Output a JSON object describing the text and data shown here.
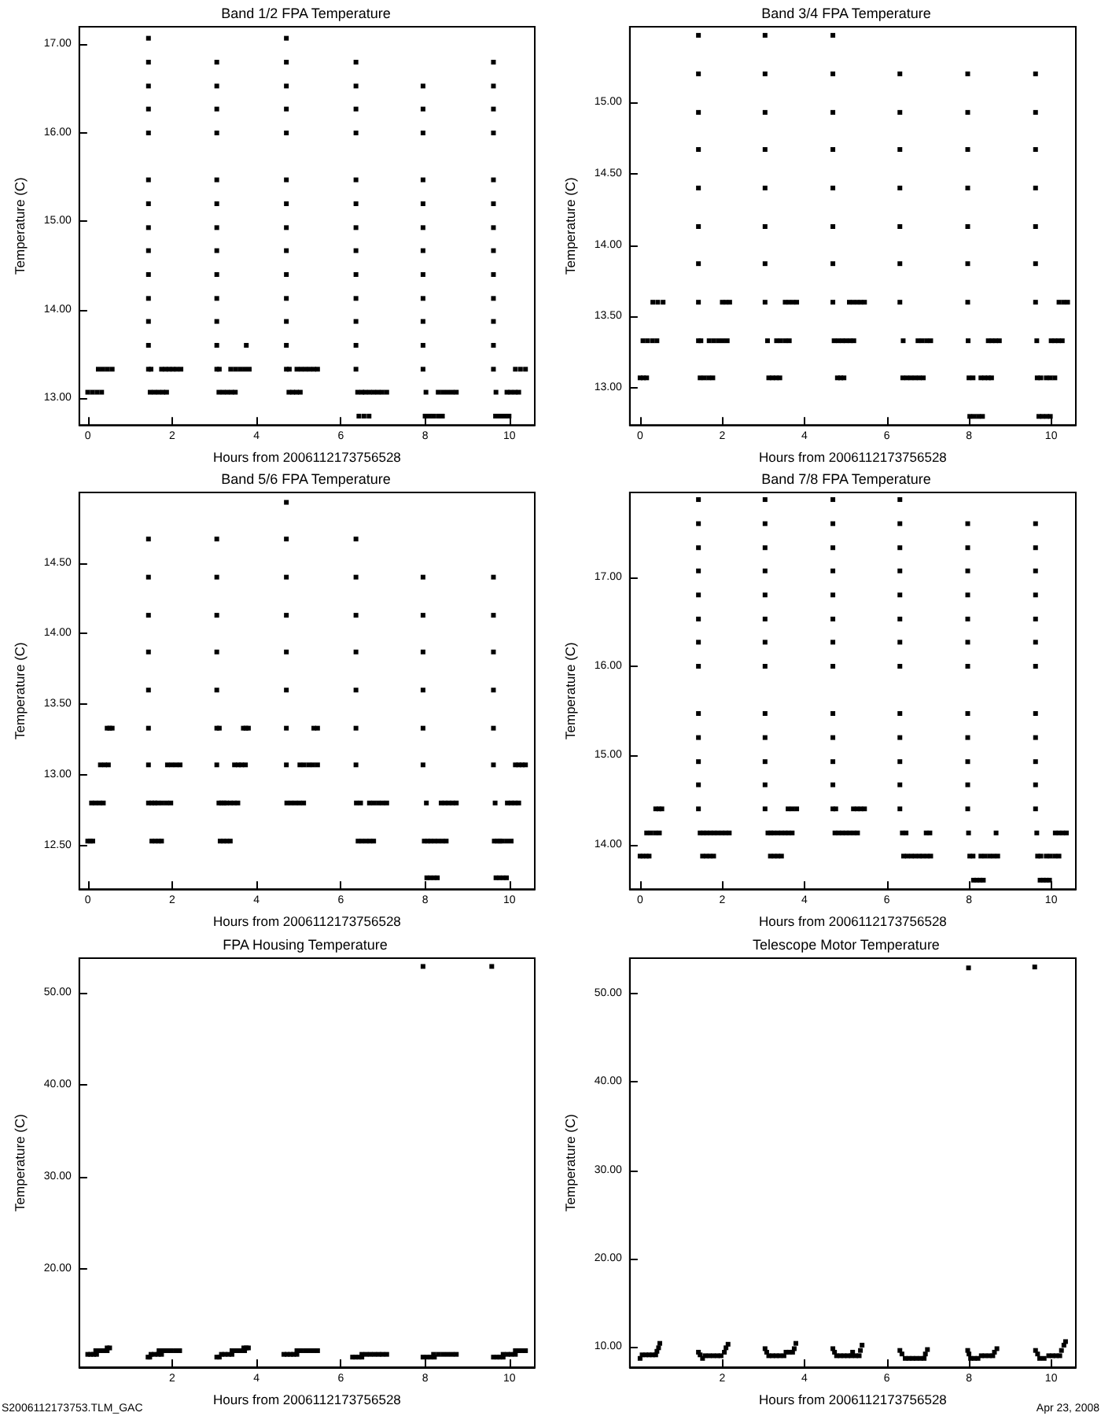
{
  "chart_data": [
    {
      "type": "scatter",
      "title": "Band 1/2 FPA Temperature",
      "xlabel": "Hours from 2006112173756528",
      "ylabel": "Temperature (C)",
      "color": "#000000",
      "marker": "square",
      "xlim": [
        -0.2,
        10.6
      ],
      "xticks": [
        0,
        2,
        4,
        6,
        8,
        10
      ],
      "ylim": [
        12.7,
        17.2
      ],
      "yticks": [
        {
          "value": 13,
          "label": "13.00"
        },
        {
          "value": 14,
          "label": "14.00"
        },
        {
          "value": 15,
          "label": "15.00"
        },
        {
          "value": 16,
          "label": "16.00"
        },
        {
          "value": 17,
          "label": "17.00"
        }
      ],
      "x": [
        0.0,
        0.11,
        0.22,
        0.33,
        0.25,
        0.36,
        0.47,
        0.58,
        1.44,
        1.44,
        1.44,
        1.44,
        1.44,
        1.44,
        1.44,
        1.44,
        1.44,
        1.44,
        1.44,
        1.44,
        1.44,
        1.44,
        1.5,
        1.48,
        1.58,
        1.68,
        1.78,
        1.87,
        1.75,
        1.84,
        1.93,
        2.02,
        2.11,
        2.21,
        3.06,
        3.06,
        3.06,
        3.06,
        3.06,
        3.06,
        3.06,
        3.06,
        3.06,
        3.06,
        3.06,
        3.06,
        3.06,
        3.12,
        3.11,
        3.21,
        3.31,
        3.41,
        3.5,
        3.39,
        3.5,
        3.61,
        3.72,
        3.83,
        3.76,
        4.71,
        4.71,
        4.71,
        4.71,
        4.71,
        4.71,
        4.71,
        4.71,
        4.71,
        4.71,
        4.71,
        4.71,
        4.71,
        4.71,
        4.78,
        4.77,
        4.86,
        4.95,
        5.04,
        4.96,
        5.06,
        5.16,
        5.26,
        5.36,
        5.45,
        6.36,
        6.36,
        6.36,
        6.36,
        6.36,
        6.36,
        6.36,
        6.36,
        6.36,
        6.36,
        6.36,
        6.36,
        6.36,
        6.4,
        6.5,
        6.58,
        6.68,
        6.78,
        6.88,
        6.98,
        7.09,
        6.43,
        6.55,
        6.67,
        7.95,
        7.95,
        7.95,
        7.95,
        7.95,
        7.95,
        7.95,
        7.95,
        7.95,
        7.95,
        7.95,
        7.95,
        8.02,
        8.31,
        8.42,
        8.53,
        8.64,
        8.74,
        8.0,
        8.1,
        8.2,
        8.31,
        8.41,
        9.62,
        9.62,
        9.62,
        9.62,
        9.62,
        9.62,
        9.62,
        9.62,
        9.62,
        9.62,
        9.62,
        9.62,
        9.62,
        9.68,
        9.94,
        10.03,
        10.13,
        10.22,
        9.67,
        9.78,
        9.89,
        9.99,
        10.14,
        10.26,
        10.38
      ],
      "values": [
        13.07,
        13.07,
        13.07,
        13.07,
        13.33,
        13.33,
        13.33,
        13.33,
        17.07,
        16.8,
        16.53,
        16.27,
        16.0,
        15.47,
        15.2,
        14.93,
        14.67,
        14.4,
        14.13,
        13.87,
        13.6,
        13.33,
        13.33,
        13.07,
        13.07,
        13.07,
        13.07,
        13.07,
        13.33,
        13.33,
        13.33,
        13.33,
        13.33,
        13.33,
        16.8,
        16.53,
        16.27,
        16.0,
        15.47,
        15.2,
        14.93,
        14.67,
        14.4,
        14.13,
        13.87,
        13.6,
        13.33,
        13.33,
        13.07,
        13.07,
        13.07,
        13.07,
        13.07,
        13.33,
        13.33,
        13.33,
        13.33,
        13.33,
        13.6,
        17.07,
        16.8,
        16.53,
        16.27,
        16.0,
        15.47,
        15.2,
        14.93,
        14.67,
        14.4,
        14.13,
        13.87,
        13.6,
        13.33,
        13.33,
        13.07,
        13.07,
        13.07,
        13.07,
        13.33,
        13.33,
        13.33,
        13.33,
        13.33,
        13.33,
        16.8,
        16.53,
        16.27,
        16.0,
        15.47,
        15.2,
        14.93,
        14.67,
        14.4,
        14.13,
        13.87,
        13.6,
        13.33,
        13.07,
        13.07,
        13.07,
        13.07,
        13.07,
        13.07,
        13.07,
        13.07,
        12.8,
        12.8,
        12.8,
        16.53,
        16.27,
        16.0,
        15.47,
        15.2,
        14.93,
        14.67,
        14.4,
        14.13,
        13.87,
        13.6,
        13.33,
        13.07,
        13.07,
        13.07,
        13.07,
        13.07,
        13.07,
        12.8,
        12.8,
        12.8,
        12.8,
        12.8,
        16.8,
        16.53,
        16.27,
        16.0,
        15.47,
        15.2,
        14.93,
        14.67,
        14.4,
        14.13,
        13.87,
        13.6,
        13.33,
        13.07,
        13.07,
        13.07,
        13.07,
        13.07,
        12.8,
        12.8,
        12.8,
        12.8,
        13.33,
        13.33,
        13.33
      ]
    },
    {
      "type": "scatter",
      "title": "Band 3/4 FPA Temperature",
      "xlabel": "Hours from 2006112173756528",
      "ylabel": "Temperature (C)",
      "color": "#000000",
      "marker": "square",
      "xlim": [
        -0.25,
        10.6
      ],
      "xticks": [
        0,
        2,
        4,
        6,
        8,
        10
      ],
      "ylim": [
        12.74,
        15.53
      ],
      "yticks": [
        {
          "value": 13,
          "label": "13.00"
        },
        {
          "value": 13.5,
          "label": "13.50"
        },
        {
          "value": 14,
          "label": "14.00"
        },
        {
          "value": 14.5,
          "label": "14.50"
        },
        {
          "value": 15,
          "label": "15.00"
        }
      ],
      "x": [
        0.0,
        0.08,
        0.16,
        0.07,
        0.18,
        0.3,
        0.41,
        0.31,
        0.43,
        0.56,
        1.42,
        1.42,
        1.42,
        1.42,
        1.42,
        1.42,
        1.42,
        1.42,
        1.42,
        1.48,
        1.46,
        1.56,
        1.67,
        1.77,
        1.68,
        1.79,
        1.9,
        2.01,
        2.12,
        2.0,
        2.09,
        2.18,
        3.04,
        3.04,
        3.04,
        3.04,
        3.04,
        3.04,
        3.04,
        3.04,
        3.1,
        3.13,
        3.22,
        3.31,
        3.4,
        3.32,
        3.42,
        3.53,
        3.63,
        3.53,
        3.62,
        3.72,
        3.81,
        4.69,
        4.69,
        4.69,
        4.69,
        4.69,
        4.69,
        4.69,
        4.69,
        4.8,
        4.88,
        4.96,
        4.72,
        4.82,
        4.92,
        5.01,
        5.11,
        5.2,
        5.09,
        5.18,
        5.28,
        5.37,
        5.46,
        6.32,
        6.32,
        6.32,
        6.32,
        6.32,
        6.32,
        6.32,
        6.4,
        6.39,
        6.49,
        6.59,
        6.69,
        6.79,
        6.89,
        6.76,
        6.86,
        6.97,
        7.07,
        7.97,
        7.97,
        7.97,
        7.97,
        7.97,
        7.97,
        7.97,
        7.98,
        8.02,
        8.12,
        8.23,
        8.33,
        8.0,
        8.1,
        8.29,
        8.38,
        8.47,
        8.55,
        8.47,
        8.56,
        8.65,
        8.74,
        9.62,
        9.62,
        9.62,
        9.62,
        9.62,
        9.62,
        9.62,
        9.65,
        9.7,
        9.79,
        9.89,
        9.98,
        9.66,
        9.75,
        9.88,
        9.98,
        10.09,
        10.0,
        10.09,
        10.18,
        10.27,
        10.19,
        10.3,
        10.4
      ],
      "values": [
        13.07,
        13.07,
        13.07,
        13.33,
        13.33,
        13.33,
        13.33,
        13.6,
        13.6,
        13.6,
        15.47,
        15.2,
        14.93,
        14.67,
        14.4,
        14.13,
        13.87,
        13.6,
        13.33,
        13.33,
        13.07,
        13.07,
        13.07,
        13.07,
        13.33,
        13.33,
        13.33,
        13.33,
        13.33,
        13.6,
        13.6,
        13.6,
        15.47,
        15.2,
        14.93,
        14.67,
        14.4,
        14.13,
        13.87,
        13.6,
        13.33,
        13.07,
        13.07,
        13.07,
        13.07,
        13.33,
        13.33,
        13.33,
        13.33,
        13.6,
        13.6,
        13.6,
        13.6,
        15.47,
        15.2,
        14.93,
        14.67,
        14.4,
        14.13,
        13.87,
        13.6,
        13.07,
        13.07,
        13.07,
        13.33,
        13.33,
        13.33,
        13.33,
        13.33,
        13.33,
        13.6,
        13.6,
        13.6,
        13.6,
        13.6,
        15.2,
        14.93,
        14.67,
        14.4,
        14.13,
        13.87,
        13.6,
        13.33,
        13.07,
        13.07,
        13.07,
        13.07,
        13.07,
        13.07,
        13.33,
        13.33,
        13.33,
        13.33,
        15.2,
        14.93,
        14.67,
        14.4,
        14.13,
        13.87,
        13.6,
        13.33,
        12.8,
        12.8,
        12.8,
        12.8,
        13.07,
        13.07,
        13.07,
        13.07,
        13.07,
        13.07,
        13.33,
        13.33,
        13.33,
        13.33,
        15.2,
        14.93,
        14.67,
        14.4,
        14.13,
        13.87,
        13.6,
        13.33,
        12.8,
        12.8,
        12.8,
        12.8,
        13.07,
        13.07,
        13.07,
        13.07,
        13.07,
        13.33,
        13.33,
        13.33,
        13.33,
        13.6,
        13.6,
        13.6
      ]
    },
    {
      "type": "scatter",
      "title": "Band 5/6 FPA Temperature",
      "xlabel": "Hours from 2006112173756528",
      "ylabel": "Temperature (C)",
      "color": "#000000",
      "marker": "square",
      "xlim": [
        -0.2,
        10.6
      ],
      "xticks": [
        0,
        2,
        4,
        6,
        8,
        10
      ],
      "ylim": [
        12.19,
        15.0
      ],
      "yticks": [
        {
          "value": 12.5,
          "label": "12.50"
        },
        {
          "value": 13,
          "label": "13.00"
        },
        {
          "value": 13.5,
          "label": "13.50"
        },
        {
          "value": 14,
          "label": "14.00"
        },
        {
          "value": 14.5,
          "label": "14.50"
        }
      ],
      "x": [
        0.0,
        0.06,
        0.12,
        0.09,
        0.18,
        0.28,
        0.37,
        0.3,
        0.4,
        0.49,
        0.46,
        0.52,
        0.58,
        1.44,
        1.44,
        1.44,
        1.44,
        1.44,
        1.44,
        1.44,
        1.44,
        1.52,
        1.59,
        1.66,
        1.76,
        1.87,
        1.97,
        1.52,
        1.6,
        1.68,
        1.75,
        1.89,
        1.99,
        2.09,
        2.19,
        3.06,
        3.06,
        3.06,
        3.06,
        3.06,
        3.06,
        3.06,
        3.12,
        3.11,
        3.17,
        3.23,
        3.29,
        3.38,
        3.47,
        3.56,
        3.14,
        3.22,
        3.3,
        3.38,
        3.48,
        3.57,
        3.65,
        3.74,
        3.69,
        3.75,
        3.81,
        4.71,
        4.71,
        4.71,
        4.71,
        4.71,
        4.71,
        4.71,
        4.71,
        4.72,
        4.82,
        4.92,
        5.02,
        5.12,
        5.03,
        5.13,
        5.24,
        5.34,
        5.45,
        5.36,
        5.45,
        6.36,
        6.36,
        6.36,
        6.36,
        6.36,
        6.36,
        6.36,
        6.41,
        6.5,
        6.6,
        6.69,
        6.78,
        6.37,
        6.47,
        6.68,
        6.78,
        6.89,
        6.99,
        7.09,
        7.95,
        7.95,
        7.95,
        7.95,
        7.95,
        7.95,
        8.04,
        8.12,
        8.21,
        8.29,
        7.98,
        8.06,
        8.13,
        8.22,
        8.31,
        8.41,
        8.5,
        8.03,
        8.38,
        8.47,
        8.56,
        8.65,
        8.74,
        9.62,
        9.62,
        9.62,
        9.62,
        9.62,
        9.62,
        9.68,
        9.76,
        9.85,
        9.93,
        9.64,
        9.71,
        9.77,
        9.82,
        9.93,
        10.04,
        9.66,
        9.95,
        10.04,
        10.13,
        10.22,
        10.14,
        10.22,
        10.3,
        10.38
      ],
      "values": [
        12.53,
        12.53,
        12.53,
        12.8,
        12.8,
        12.8,
        12.8,
        13.07,
        13.07,
        13.07,
        13.33,
        13.33,
        13.33,
        14.67,
        14.4,
        14.13,
        13.87,
        13.6,
        13.33,
        13.07,
        12.8,
        12.8,
        12.8,
        12.8,
        12.8,
        12.8,
        12.8,
        12.53,
        12.53,
        12.53,
        12.53,
        13.07,
        13.07,
        13.07,
        13.07,
        14.67,
        14.4,
        14.13,
        13.87,
        13.6,
        13.33,
        13.07,
        13.33,
        12.8,
        12.8,
        12.8,
        12.8,
        12.8,
        12.8,
        12.8,
        12.53,
        12.53,
        12.53,
        12.53,
        13.07,
        13.07,
        13.07,
        13.07,
        13.33,
        13.33,
        13.33,
        14.93,
        14.67,
        14.4,
        14.13,
        13.87,
        13.6,
        13.33,
        13.07,
        12.8,
        12.8,
        12.8,
        12.8,
        12.8,
        13.07,
        13.07,
        13.07,
        13.07,
        13.07,
        13.33,
        13.33,
        14.67,
        14.4,
        14.13,
        13.87,
        13.6,
        13.33,
        13.07,
        12.53,
        12.53,
        12.53,
        12.53,
        12.53,
        12.8,
        12.8,
        12.8,
        12.8,
        12.8,
        12.8,
        12.8,
        14.4,
        14.13,
        13.87,
        13.6,
        13.33,
        13.07,
        12.27,
        12.27,
        12.27,
        12.27,
        12.53,
        12.53,
        12.53,
        12.53,
        12.53,
        12.53,
        12.53,
        12.8,
        12.8,
        12.8,
        12.8,
        12.8,
        12.8,
        14.4,
        14.13,
        13.87,
        13.6,
        13.33,
        13.07,
        12.27,
        12.27,
        12.27,
        12.27,
        12.53,
        12.53,
        12.53,
        12.53,
        12.53,
        12.53,
        12.8,
        12.8,
        12.8,
        12.8,
        12.8,
        13.07,
        13.07,
        13.07,
        13.07
      ]
    },
    {
      "type": "scatter",
      "title": "Band 7/8 FPA Temperature",
      "xlabel": "Hours from 2006112173756528",
      "ylabel": "Temperature (C)",
      "color": "#000000",
      "marker": "square",
      "xlim": [
        -0.25,
        10.6
      ],
      "xticks": [
        0,
        2,
        4,
        6,
        8,
        10
      ],
      "ylim": [
        13.5,
        17.95
      ],
      "yticks": [
        {
          "value": 14,
          "label": "14.00"
        },
        {
          "value": 15,
          "label": "15.00"
        },
        {
          "value": 16,
          "label": "16.00"
        },
        {
          "value": 17,
          "label": "17.00"
        }
      ],
      "x": [
        0.0,
        0.07,
        0.15,
        0.22,
        0.16,
        0.26,
        0.37,
        0.47,
        0.38,
        0.46,
        0.53,
        1.42,
        1.42,
        1.42,
        1.42,
        1.42,
        1.42,
        1.42,
        1.42,
        1.42,
        1.42,
        1.42,
        1.42,
        1.42,
        1.46,
        1.54,
        1.62,
        1.71,
        1.8,
        1.89,
        1.99,
        2.08,
        2.17,
        1.52,
        1.61,
        1.7,
        1.79,
        3.04,
        3.04,
        3.04,
        3.04,
        3.04,
        3.04,
        3.04,
        3.04,
        3.04,
        3.04,
        3.04,
        3.04,
        3.04,
        3.11,
        3.18,
        3.25,
        3.35,
        3.44,
        3.53,
        3.61,
        3.7,
        3.17,
        3.26,
        3.35,
        3.44,
        3.6,
        3.7,
        3.81,
        4.69,
        4.69,
        4.69,
        4.69,
        4.69,
        4.69,
        4.69,
        4.69,
        4.69,
        4.69,
        4.69,
        4.69,
        4.69,
        4.74,
        4.83,
        4.92,
        5.01,
        5.1,
        5.2,
        5.29,
        4.76,
        5.19,
        5.28,
        5.37,
        5.46,
        6.32,
        6.32,
        6.32,
        6.32,
        6.32,
        6.32,
        6.32,
        6.32,
        6.32,
        6.32,
        6.32,
        6.32,
        6.32,
        6.41,
        6.5,
        6.6,
        6.69,
        6.79,
        6.88,
        6.98,
        7.07,
        6.38,
        6.47,
        6.96,
        7.05,
        7.97,
        7.97,
        7.97,
        7.97,
        7.97,
        7.97,
        7.97,
        7.97,
        7.97,
        7.97,
        7.97,
        7.97,
        8.11,
        8.19,
        8.27,
        8.35,
        8.02,
        8.1,
        8.29,
        8.39,
        8.5,
        8.6,
        8.7,
        7.99,
        8.66,
        9.62,
        9.62,
        9.62,
        9.62,
        9.62,
        9.62,
        9.62,
        9.62,
        9.62,
        9.62,
        9.62,
        9.62,
        9.73,
        9.81,
        9.88,
        9.96,
        9.67,
        9.75,
        9.88,
        9.98,
        10.09,
        10.19,
        9.65,
        10.1,
        10.19,
        10.28,
        10.37
      ],
      "values": [
        13.87,
        13.87,
        13.87,
        13.87,
        14.13,
        14.13,
        14.13,
        14.13,
        14.4,
        14.4,
        14.4,
        17.87,
        17.6,
        17.33,
        17.07,
        16.8,
        16.53,
        16.27,
        16.0,
        15.47,
        15.2,
        14.93,
        14.67,
        14.4,
        14.13,
        14.13,
        14.13,
        14.13,
        14.13,
        14.13,
        14.13,
        14.13,
        14.13,
        13.87,
        13.87,
        13.87,
        13.87,
        17.87,
        17.6,
        17.33,
        17.07,
        16.8,
        16.53,
        16.27,
        16.0,
        15.47,
        15.2,
        14.93,
        14.67,
        14.4,
        14.13,
        14.13,
        14.13,
        14.13,
        14.13,
        14.13,
        14.13,
        14.13,
        13.87,
        13.87,
        13.87,
        13.87,
        14.4,
        14.4,
        14.4,
        17.87,
        17.6,
        17.33,
        17.07,
        16.8,
        16.53,
        16.27,
        16.0,
        15.47,
        15.2,
        14.93,
        14.67,
        14.4,
        14.13,
        14.13,
        14.13,
        14.13,
        14.13,
        14.13,
        14.13,
        14.4,
        14.4,
        14.4,
        14.4,
        14.4,
        17.87,
        17.6,
        17.33,
        17.07,
        16.8,
        16.53,
        16.27,
        16.0,
        15.47,
        15.2,
        14.93,
        14.67,
        14.4,
        13.87,
        13.87,
        13.87,
        13.87,
        13.87,
        13.87,
        13.87,
        13.87,
        14.13,
        14.13,
        14.13,
        14.13,
        17.6,
        17.33,
        17.07,
        16.8,
        16.53,
        16.27,
        16.0,
        15.47,
        15.2,
        14.93,
        14.67,
        14.4,
        13.6,
        13.6,
        13.6,
        13.6,
        13.87,
        13.87,
        13.87,
        13.87,
        13.87,
        13.87,
        13.87,
        14.13,
        14.13,
        17.6,
        17.33,
        17.07,
        16.8,
        16.53,
        16.27,
        16.0,
        15.47,
        15.2,
        14.93,
        14.67,
        14.4,
        13.6,
        13.6,
        13.6,
        13.6,
        13.87,
        13.87,
        13.87,
        13.87,
        13.87,
        13.87,
        14.13,
        14.13,
        14.13,
        14.13,
        14.13
      ]
    },
    {
      "type": "scatter",
      "title": "FPA Housing Temperature",
      "xlabel": "Hours from 2006112173756528",
      "ylabel": "Temperature (C)",
      "color": "#000000",
      "marker": "square",
      "xlim": [
        -0.2,
        10.6
      ],
      "xticks": [
        2,
        4,
        6,
        8,
        10
      ],
      "ylim": [
        9.3,
        53.8
      ],
      "yticks": [
        {
          "value": 20,
          "label": "20.00"
        },
        {
          "value": 30,
          "label": "30.00"
        },
        {
          "value": 40,
          "label": "40.00"
        },
        {
          "value": 50,
          "label": "50.00"
        }
      ],
      "annotations": [
        "S2006112173753.TLM_GAC"
      ],
      "x": [
        0.0,
        0.07,
        0.14,
        0.21,
        0.19,
        0.28,
        0.37,
        0.46,
        0.46,
        0.52,
        1.43,
        1.47,
        1.5,
        1.58,
        1.67,
        1.75,
        1.69,
        1.79,
        1.89,
        1.98,
        2.08,
        2.18,
        3.06,
        3.12,
        3.17,
        3.25,
        3.34,
        3.42,
        3.42,
        3.52,
        3.62,
        3.72,
        3.7,
        3.76,
        3.81,
        4.65,
        4.73,
        4.81,
        4.88,
        4.96,
        4.96,
        5.06,
        5.16,
        5.26,
        5.36,
        5.45,
        6.28,
        6.35,
        6.43,
        6.5,
        6.5,
        6.6,
        6.7,
        6.8,
        6.9,
        6.99,
        7.09,
        7.95,
        7.95,
        8.04,
        8.13,
        8.22,
        8.2,
        8.31,
        8.42,
        8.53,
        8.64,
        8.74,
        9.58,
        9.62,
        9.7,
        9.77,
        9.85,
        9.85,
        9.95,
        10.04,
        10.14,
        10.14,
        10.22,
        10.3,
        10.38
      ],
      "values": [
        10.7,
        10.7,
        10.7,
        10.7,
        11.1,
        11.1,
        11.1,
        11.1,
        11.4,
        11.4,
        10.4,
        10.4,
        10.7,
        10.7,
        10.7,
        10.7,
        11.1,
        11.1,
        11.1,
        11.1,
        11.1,
        11.1,
        10.4,
        10.4,
        10.7,
        10.7,
        10.7,
        10.7,
        11.1,
        11.1,
        11.1,
        11.1,
        11.4,
        11.4,
        11.4,
        10.7,
        10.7,
        10.7,
        10.7,
        10.7,
        11.1,
        11.1,
        11.1,
        11.1,
        11.1,
        11.1,
        10.4,
        10.4,
        10.4,
        10.4,
        10.7,
        10.7,
        10.7,
        10.7,
        10.7,
        10.7,
        10.7,
        52.9,
        10.4,
        10.4,
        10.4,
        10.4,
        10.7,
        10.7,
        10.7,
        10.7,
        10.7,
        10.7,
        52.9,
        10.4,
        10.4,
        10.4,
        10.4,
        10.7,
        10.7,
        10.7,
        10.7,
        11.1,
        11.1,
        11.1,
        11.1
      ]
    },
    {
      "type": "scatter",
      "title": "Telescope Motor Temperature",
      "xlabel": "Hours from 2006112173756528",
      "ylabel": "Temperature (C)",
      "color": "#000000",
      "marker": "square",
      "xlim": [
        -0.25,
        10.6
      ],
      "xticks": [
        2,
        4,
        6,
        8,
        10
      ],
      "ylim": [
        7.7,
        54.0
      ],
      "yticks": [
        {
          "value": 10,
          "label": "10.00"
        },
        {
          "value": 20,
          "label": "20.00"
        },
        {
          "value": 30,
          "label": "30.00"
        },
        {
          "value": 40,
          "label": "40.00"
        },
        {
          "value": 50,
          "label": "50.00"
        }
      ],
      "annotations": [
        "Apr 23, 2008"
      ],
      "x": [
        0.0,
        0.05,
        0.14,
        0.22,
        0.3,
        0.38,
        0.41,
        0.45,
        0.48,
        1.42,
        1.46,
        1.52,
        1.58,
        1.68,
        1.78,
        1.88,
        1.97,
        2.05,
        2.09,
        2.14,
        3.04,
        3.08,
        3.13,
        3.22,
        3.31,
        3.4,
        3.5,
        3.55,
        3.63,
        3.71,
        3.75,
        3.79,
        4.69,
        4.73,
        4.78,
        4.87,
        4.96,
        5.05,
        5.14,
        5.17,
        5.24,
        5.33,
        5.36,
        5.4,
        6.32,
        6.37,
        6.45,
        6.54,
        6.63,
        6.72,
        6.82,
        6.91,
        6.94,
        6.99,
        7.99,
        7.97,
        8.0,
        8.04,
        8.13,
        8.22,
        8.3,
        8.39,
        8.49,
        8.58,
        8.62,
        8.68,
        9.6,
        9.62,
        9.67,
        9.72,
        9.83,
        9.94,
        10.03,
        10.12,
        10.21,
        10.25,
        10.31,
        10.35
      ],
      "values": [
        8.7,
        9.1,
        9.1,
        9.1,
        9.1,
        9.1,
        9.5,
        9.9,
        10.4,
        9.4,
        9.1,
        8.7,
        9.0,
        9.0,
        9.0,
        9.0,
        9.0,
        9.4,
        9.9,
        10.3,
        9.8,
        9.4,
        9.0,
        9.0,
        9.0,
        9.0,
        9.0,
        9.4,
        9.4,
        9.4,
        9.8,
        10.4,
        9.8,
        9.4,
        9.0,
        9.0,
        9.0,
        9.0,
        9.0,
        9.4,
        9.0,
        9.0,
        9.6,
        10.2,
        9.6,
        9.2,
        8.7,
        8.7,
        8.7,
        8.7,
        8.7,
        8.7,
        9.2,
        9.7,
        52.9,
        9.6,
        9.2,
        8.7,
        8.7,
        8.7,
        9.0,
        9.0,
        9.0,
        9.0,
        9.4,
        9.8,
        53.0,
        9.6,
        9.2,
        8.7,
        8.7,
        9.0,
        9.0,
        9.0,
        9.0,
        9.6,
        10.2,
        10.6
      ]
    }
  ]
}
